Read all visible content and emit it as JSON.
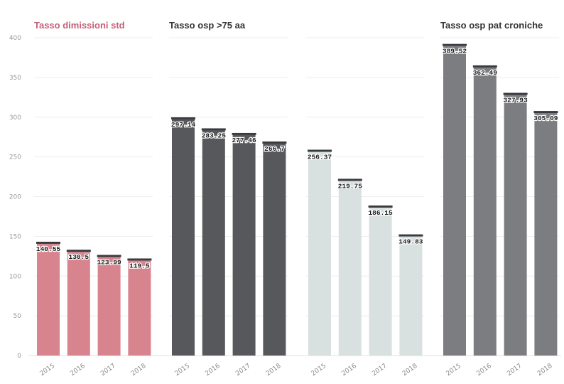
{
  "chart_data": {
    "type": "bar",
    "categories": [
      "2015",
      "2016",
      "2017",
      "2018"
    ],
    "ylim": [
      0,
      400
    ],
    "yticks": [
      0,
      50,
      100,
      150,
      200,
      250,
      300,
      350,
      400
    ],
    "grid": true,
    "panels": [
      {
        "title": "Tasso dimissioni std",
        "title_color": "#c4607a",
        "bar_color": "#d8848f",
        "values": [
          140.55,
          130.5,
          123.99,
          119.5
        ],
        "labels": [
          "140.55",
          "130.5",
          "123.99",
          "119.5"
        ]
      },
      {
        "title": "Tasso osp >75 aa",
        "title_color": "#333333",
        "bar_color": "#57585c",
        "values": [
          297.14,
          283.25,
          277.46,
          266.7
        ],
        "labels": [
          "297.14",
          "283.25",
          "277.46",
          "266.7"
        ]
      },
      {
        "title": "",
        "title_color": "#e6ecec",
        "bar_color": "#d8e0e0",
        "values": [
          256.37,
          219.75,
          186.15,
          149.83
        ],
        "labels": [
          "256.37",
          "219.75",
          "186.15",
          "149.83"
        ]
      },
      {
        "title": "Tasso osp pat croniche",
        "title_color": "#333333",
        "bar_color": "#7c7d80",
        "values": [
          389.52,
          362.49,
          327.93,
          305.09
        ],
        "labels": [
          "389.52",
          "362.49",
          "327.93",
          "305.09"
        ]
      }
    ]
  }
}
